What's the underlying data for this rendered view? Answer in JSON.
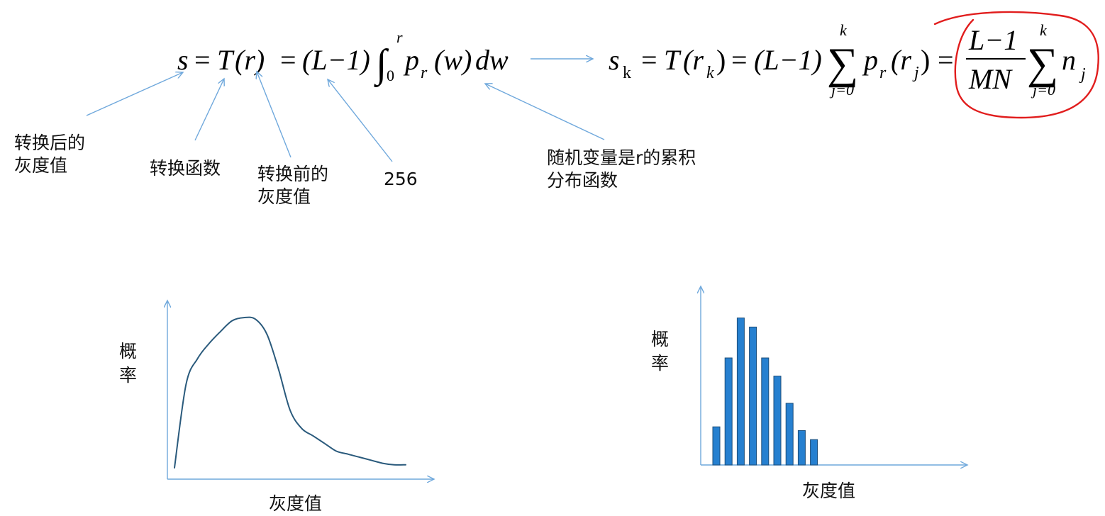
{
  "formulas": {
    "continuous": {
      "s": "s",
      "eq1": "=",
      "T": "T",
      "r_arg": "(r)",
      "eq2": "=",
      "L_minus_1": "(L−1)",
      "integral": "∫",
      "lower": "0",
      "upper": "r",
      "p": "p",
      "p_sub": "r",
      "w_arg": "(w)",
      "dw": "dw"
    },
    "discrete": {
      "s": "s",
      "s_sub": "k",
      "eq1": "=",
      "T": "T",
      "r_open": "(r",
      "r_sub": "k",
      "r_close": ")",
      "eq2": "=",
      "L_minus_1": "(L−1)",
      "sum": "∑",
      "sum_top": "k",
      "sum_bottom": "j=0",
      "p": "p",
      "p_sub": "r",
      "rj_open": "(r",
      "rj_sub": "j",
      "rj_close": ")",
      "eq3": "=",
      "frac_num": "L−1",
      "frac_den": "MN",
      "sum2": "∑",
      "sum2_top": "k",
      "sum2_bottom": "j=0",
      "n": "n",
      "n_sub": "j"
    }
  },
  "annotations": {
    "after_gray": [
      "转换后的",
      "灰度值"
    ],
    "transform_fn": [
      "转换函数"
    ],
    "before_gray": [
      "转换前的",
      "灰度值"
    ],
    "levels": [
      "256"
    ],
    "cdf": [
      "随机变量是r的累积",
      "分布函数"
    ]
  },
  "charts": {
    "left": {
      "ylabel": [
        "概",
        "率"
      ],
      "xlabel": "灰度值"
    },
    "right": {
      "ylabel": [
        "概",
        "率"
      ],
      "xlabel": "灰度值"
    }
  },
  "chart_data": [
    {
      "type": "line",
      "x": [
        0,
        1,
        2,
        3,
        4,
        5,
        6,
        7,
        8,
        9,
        10,
        11,
        12,
        13,
        14,
        15,
        16,
        17,
        18,
        19,
        20
      ],
      "y": [
        0,
        0.55,
        0.72,
        0.82,
        0.9,
        0.97,
        0.99,
        0.98,
        0.88,
        0.65,
        0.38,
        0.26,
        0.21,
        0.16,
        0.11,
        0.09,
        0.07,
        0.05,
        0.03,
        0.02,
        0.02
      ],
      "xlabel": "灰度值",
      "ylabel": "概率",
      "ylim": [
        0,
        1
      ]
    },
    {
      "type": "bar",
      "values": [
        0.21,
        0.59,
        0.81,
        0.76,
        0.59,
        0.49,
        0.34,
        0.19,
        0.14
      ],
      "xlabel": "灰度值",
      "ylabel": "概率",
      "ylim": [
        0,
        1
      ],
      "color": "#2680d0"
    }
  ],
  "colors": {
    "arrow": "#6fa8dc",
    "bar": "#2680d0",
    "bar_stroke": "#1d4e7a",
    "curve": "#2a5a7c",
    "highlight": "#e11d1d"
  }
}
